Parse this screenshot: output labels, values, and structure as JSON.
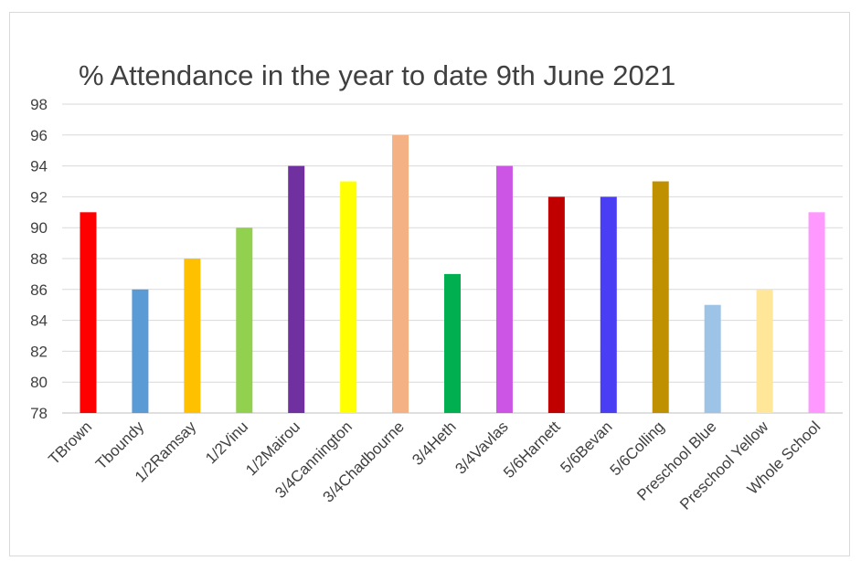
{
  "chart_data": {
    "type": "bar",
    "title": "% Attendance in the year to date 9th June 2021",
    "xlabel": "",
    "ylabel": "",
    "ylim": [
      78,
      98
    ],
    "yticks": [
      78,
      80,
      82,
      84,
      86,
      88,
      90,
      92,
      94,
      96,
      98
    ],
    "grid": true,
    "legend": "none",
    "categories": [
      "TBrown",
      "Tboundy",
      "1/2Ramsay",
      "1/2Vinu",
      "1/2Mairou",
      "3/4Cannington",
      "3/4Chadbourne",
      "3/4Heth",
      "3/4Vavlas",
      "5/6Harnett",
      "5/6Bevan",
      "5/6Colling",
      "Preschool Blue",
      "Preschool Yellow",
      "Whole School"
    ],
    "values": [
      91,
      86,
      88,
      90,
      94,
      93,
      96,
      87,
      94,
      92,
      92,
      93,
      85,
      86,
      91
    ],
    "colors": [
      "#ff0000",
      "#5b9bd5",
      "#ffc000",
      "#92d050",
      "#7030a0",
      "#ffff00",
      "#f4b183",
      "#00b050",
      "#cc55e6",
      "#c00000",
      "#4a3ef5",
      "#bf9000",
      "#9dc3e6",
      "#ffe699",
      "#ff99ff"
    ]
  }
}
